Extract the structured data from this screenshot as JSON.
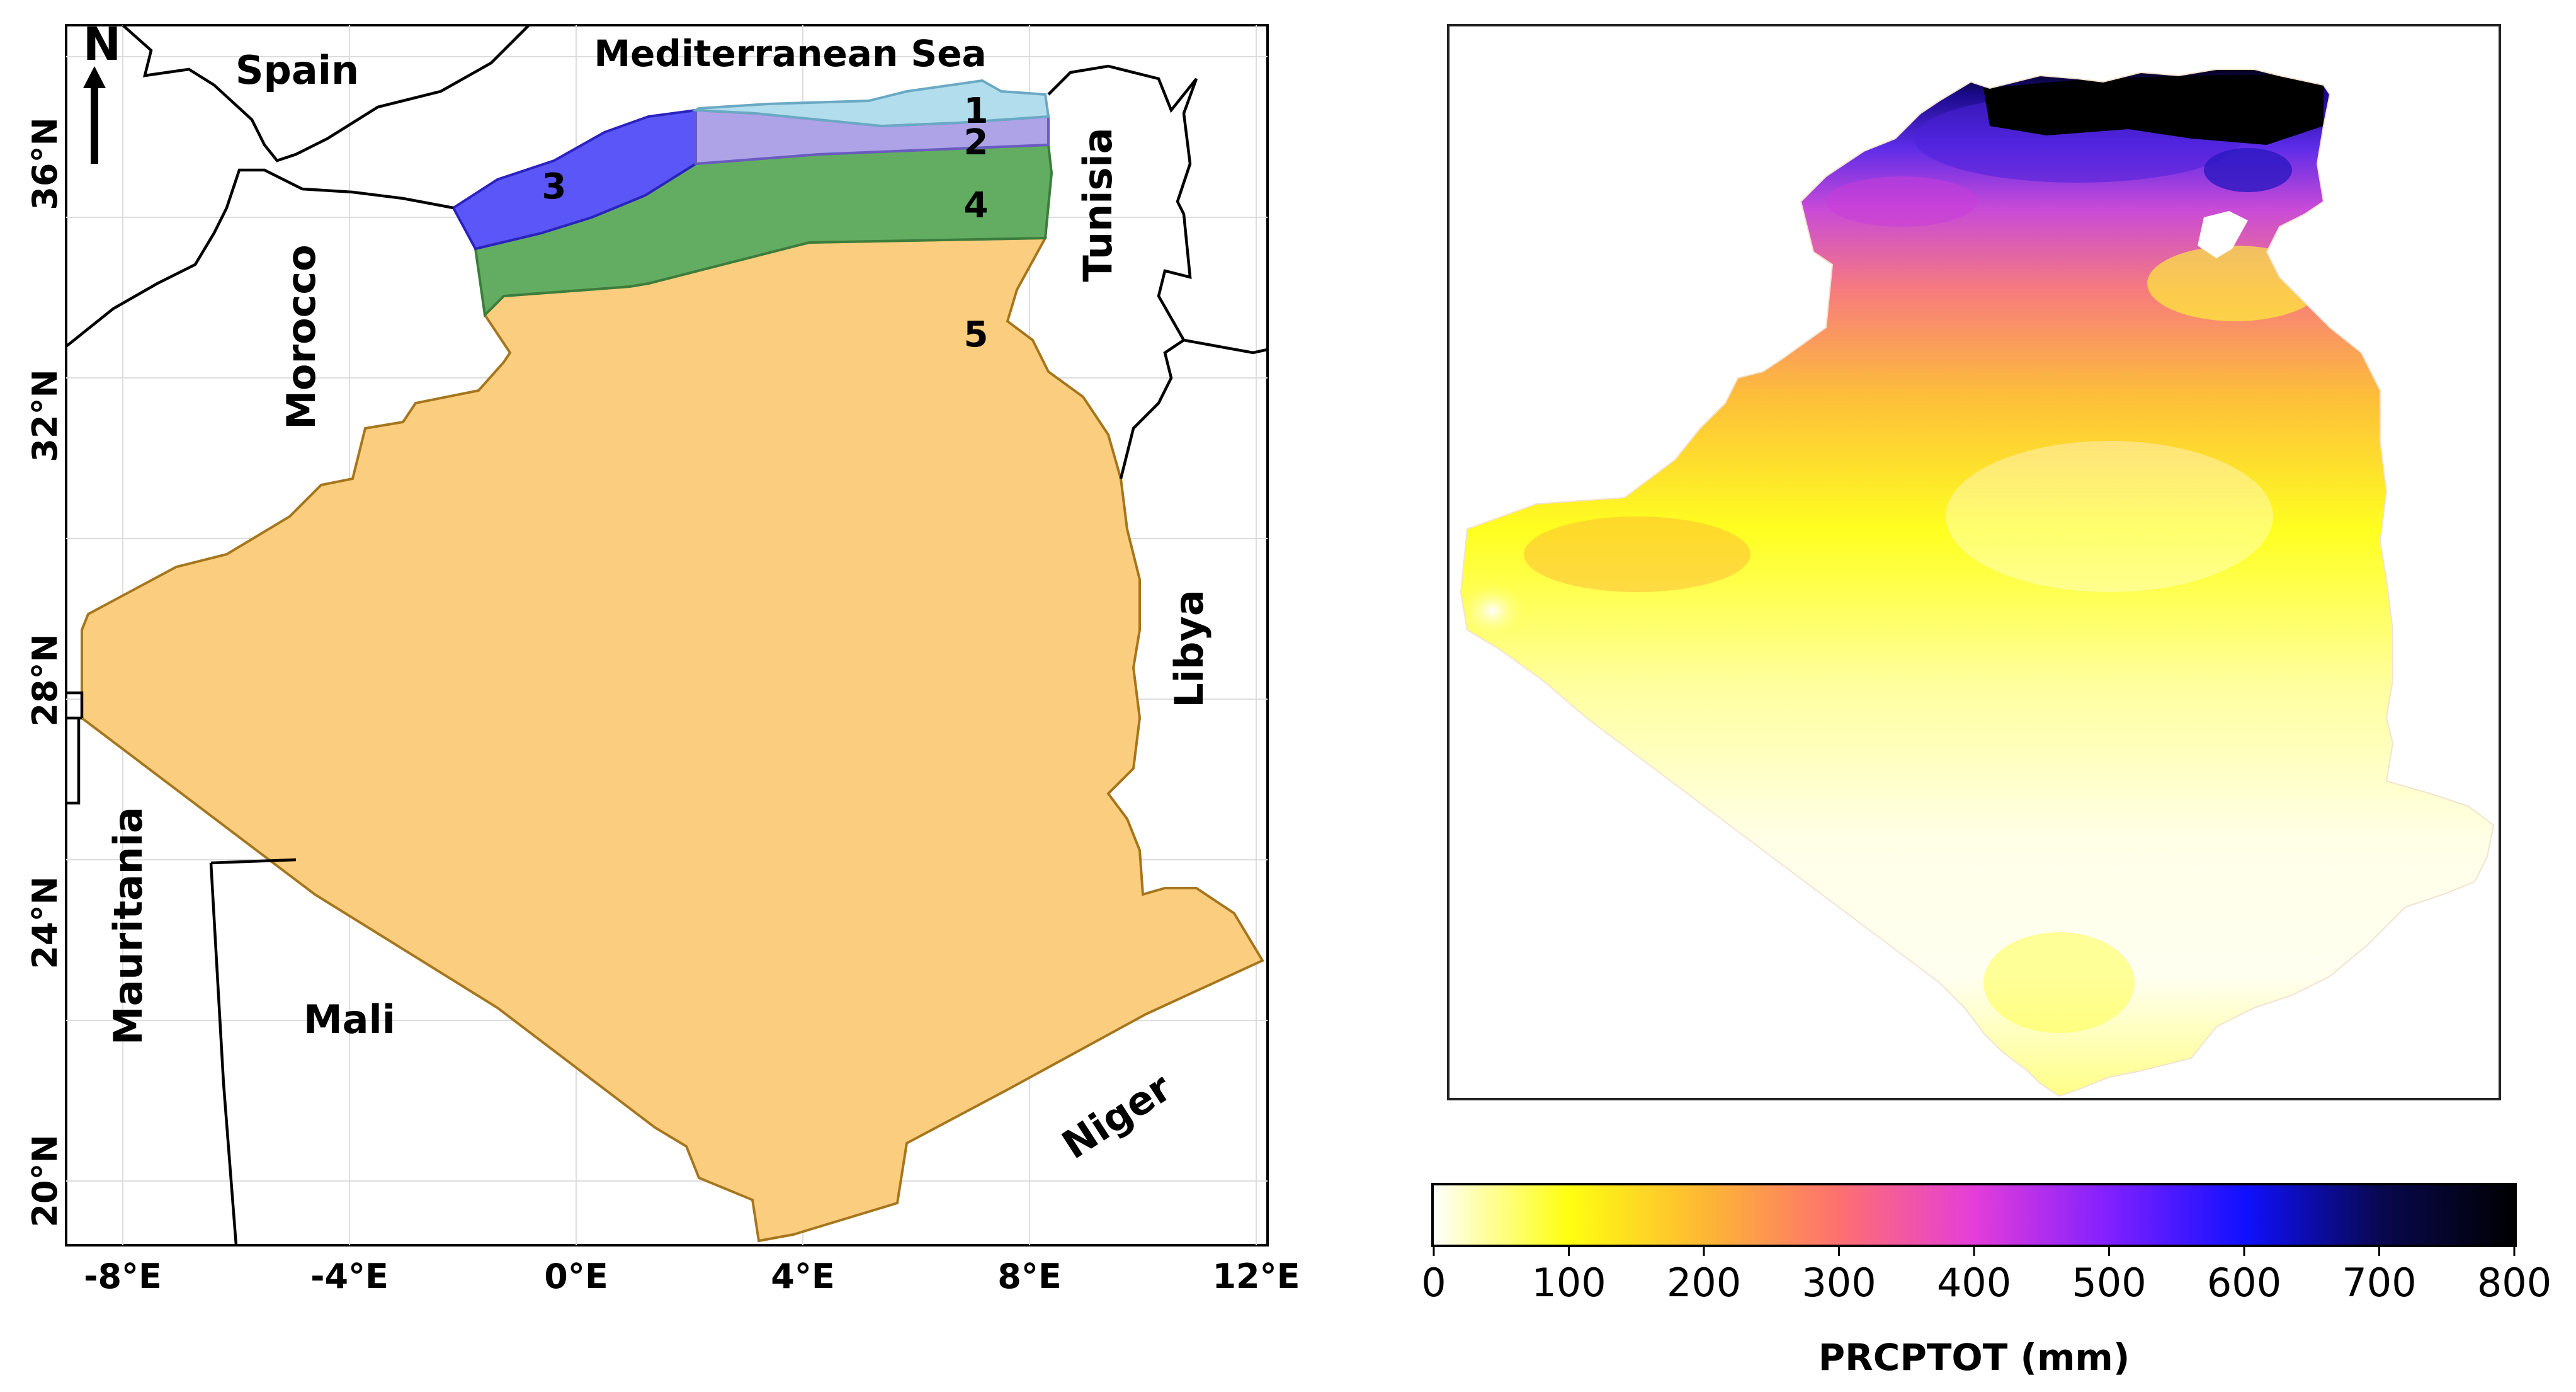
{
  "left_map": {
    "north_label": "N",
    "countries": {
      "spain": "Spain",
      "morocco": "Morocco",
      "tunisia": "Tunisia",
      "libya": "Libya",
      "mauritania": "Mauritania",
      "mali": "Mali",
      "niger": "Niger"
    },
    "sea_label": "Mediterranean Sea",
    "zones": [
      {
        "id": "1",
        "color": "#a8d8ea"
      },
      {
        "id": "2",
        "color": "#a89ee0"
      },
      {
        "id": "3",
        "color": "#5b56f5"
      },
      {
        "id": "4",
        "color": "#5fae5b"
      },
      {
        "id": "5",
        "color": "#f9c46e"
      }
    ],
    "lon_ticks": [
      "-8°E",
      "-4°E",
      "0°E",
      "4°E",
      "8°E",
      "12°E"
    ],
    "lat_ticks": [
      "20°N",
      "24°N",
      "28°N",
      "32°N",
      "36°N"
    ]
  },
  "right_map": {
    "colorbar": {
      "label": "PRCPTOT (mm)",
      "ticks": [
        "0",
        "100",
        "200",
        "300",
        "400",
        "500",
        "600",
        "700",
        "800"
      ],
      "colors": [
        "#ffffff",
        "#ffff10",
        "#fdb833",
        "#fd7070",
        "#e53dd9",
        "#8020ff",
        "#1010ff",
        "#050535",
        "#000000"
      ]
    }
  }
}
